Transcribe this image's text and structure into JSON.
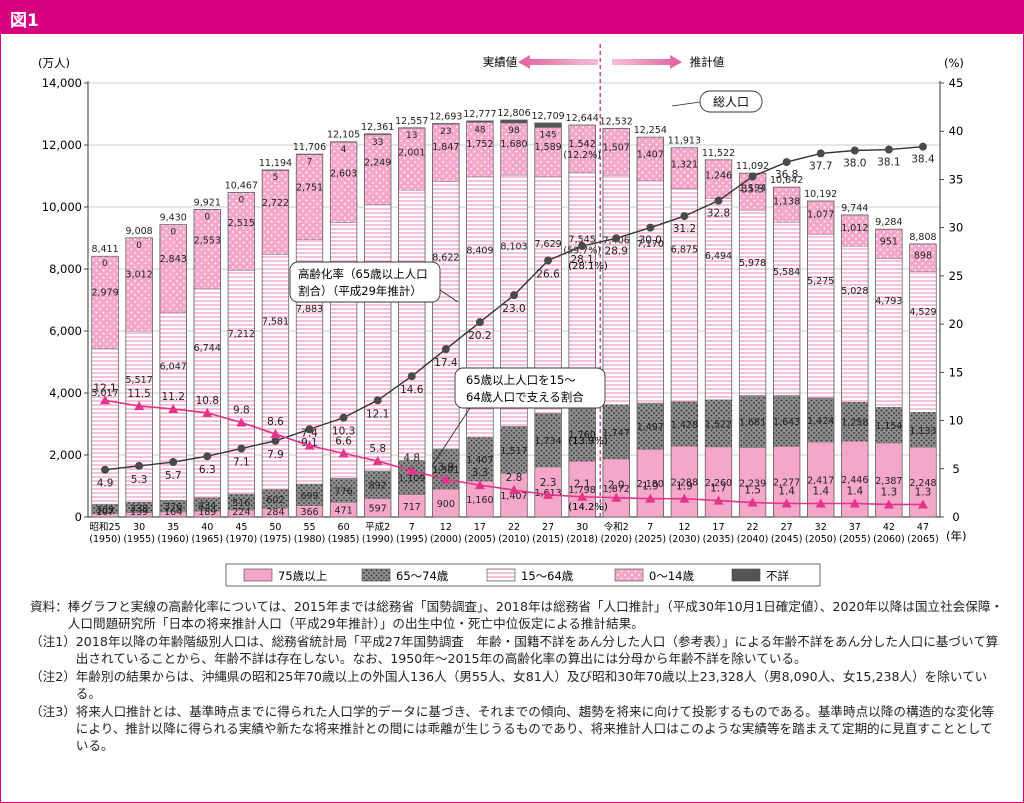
{
  "figure_label": "図1",
  "chart_data": {
    "type": "bar",
    "subtype": "stacked-bar-with-lines",
    "left_axis_unit": "(万人)",
    "right_axis_unit": "(%)",
    "x_axis_unit": "(年)",
    "y_left_ticks": [
      "0",
      "2,000",
      "4,000",
      "6,000",
      "8,000",
      "10,000",
      "12,000",
      "14,000"
    ],
    "y_left_lim": [
      0,
      14000
    ],
    "y_right_ticks": [
      "0",
      "5",
      "10",
      "15",
      "20",
      "25",
      "30",
      "35",
      "40",
      "45"
    ],
    "y_right_lim": [
      0,
      45
    ],
    "categories": [
      {
        "era": "昭和25",
        "year": "(1950)"
      },
      {
        "era": "30",
        "year": "(1955)"
      },
      {
        "era": "35",
        "year": "(1960)"
      },
      {
        "era": "40",
        "year": "(1965)"
      },
      {
        "era": "45",
        "year": "(1970)"
      },
      {
        "era": "50",
        "year": "(1975)"
      },
      {
        "era": "55",
        "year": "(1980)"
      },
      {
        "era": "60",
        "year": "(1985)"
      },
      {
        "era": "平成2",
        "year": "(1990)"
      },
      {
        "era": "7",
        "year": "(1995)"
      },
      {
        "era": "12",
        "year": "(2000)"
      },
      {
        "era": "17",
        "year": "(2005)"
      },
      {
        "era": "22",
        "year": "(2010)"
      },
      {
        "era": "27",
        "year": "(2015)"
      },
      {
        "era": "30",
        "year": "(2018)"
      },
      {
        "era": "令和2",
        "year": "(2020)"
      },
      {
        "era": "7",
        "year": "(2025)"
      },
      {
        "era": "12",
        "year": "(2030)"
      },
      {
        "era": "17",
        "year": "(2035)"
      },
      {
        "era": "22",
        "year": "(2040)"
      },
      {
        "era": "27",
        "year": "(2045)"
      },
      {
        "era": "32",
        "year": "(2050)"
      },
      {
        "era": "37",
        "year": "(2055)"
      },
      {
        "era": "42",
        "year": "(2060)"
      },
      {
        "era": "47",
        "year": "(2065)"
      }
    ],
    "series": [
      {
        "name": "75歳以上",
        "key": "s75",
        "color": "#f4a7c9",
        "pattern": "solid",
        "values": [
          107,
          139,
          164,
          189,
          224,
          284,
          366,
          471,
          597,
          717,
          900,
          1160,
          1407,
          1613,
          1798,
          1872,
          2180,
          2288,
          2260,
          2239,
          2277,
          2417,
          2446,
          2387,
          2248
        ],
        "labels": [
          "107",
          "139",
          "164",
          "189",
          "224",
          "284",
          "366",
          "471",
          "597",
          "717",
          "900",
          "1,160",
          "1,407",
          "1,613",
          "1,798",
          "1,872",
          "2,180",
          "2,288",
          "2,260",
          "2,239",
          "2,277",
          "2,417",
          "2,446",
          "2,387",
          "2,248"
        ]
      },
      {
        "name": "65～74歳",
        "key": "s6574",
        "color": "#8c8c8c",
        "pattern": "dots",
        "values": [
          309,
          338,
          376,
          434,
          516,
          602,
          699,
          776,
          892,
          1109,
          1301,
          1407,
          1517,
          1734,
          1760,
          1747,
          1497,
          1428,
          1522,
          1681,
          1643,
          1424,
          1258,
          1154,
          1133
        ],
        "labels": [
          "309",
          "338",
          "376",
          "434",
          "516",
          "602",
          "699",
          "776",
          "892",
          "1,109",
          "1,301",
          "1,407",
          "1,517",
          "1,734",
          "1,760",
          "1,747",
          "1,497",
          "1,428",
          "1,522",
          "1,681",
          "1,643",
          "1,424",
          "1,258",
          "1,154",
          "1,133"
        ]
      },
      {
        "name": "15～64歳",
        "key": "s1564",
        "color": "#ffffff",
        "pattern": "stripes",
        "values": [
          5017,
          5517,
          6047,
          6744,
          7212,
          7581,
          7883,
          8251,
          8590,
          8716,
          8622,
          8409,
          8103,
          7629,
          7545,
          7406,
          7170,
          6875,
          6494,
          5978,
          5584,
          5275,
          5028,
          4793,
          4529
        ],
        "labels": [
          "5,017",
          "5,517",
          "6,047",
          "6,744",
          "7,212",
          "7,581",
          "7,883",
          "8,251",
          "8,590",
          "8,716",
          "8,622",
          "8,409",
          "8,103",
          "7,629",
          "7,545\n(59.7%)",
          "7,406",
          "7,170",
          "6,875",
          "6,494",
          "5,978",
          "5,584",
          "5,275",
          "5,028",
          "4,793",
          "4,529"
        ]
      },
      {
        "name": "0～14歳",
        "key": "s014",
        "color": "#f4a7c9",
        "pattern": "pinkdots",
        "values": [
          2979,
          3012,
          2843,
          2553,
          2515,
          2722,
          2751,
          2603,
          2249,
          2001,
          1847,
          1752,
          1680,
          1589,
          1542,
          1507,
          1407,
          1321,
          1246,
          1194,
          1138,
          1077,
          1012,
          951,
          898
        ],
        "labels": [
          "2,979",
          "3,012",
          "2,843",
          "2,553",
          "2,515",
          "2,722",
          "2,751",
          "2,603",
          "2,249",
          "2,001",
          "1,847",
          "1,752",
          "1,680",
          "1,589",
          "1,542\n(12.2%)",
          "1,507",
          "1,407",
          "1,321",
          "1,246",
          "1,194",
          "1,138",
          "1,077",
          "1,012",
          "951",
          "898"
        ]
      },
      {
        "name": "不詳",
        "key": "sunk",
        "color": "#555555",
        "pattern": "solid",
        "values": [
          0,
          0,
          0,
          0,
          0,
          5,
          7,
          4,
          33,
          13,
          23,
          48,
          98,
          145,
          0,
          0,
          0,
          0,
          0,
          0,
          0,
          0,
          0,
          0,
          0
        ],
        "labels": [
          "0",
          "0",
          "0",
          "0",
          "0",
          "5",
          "7",
          "4",
          "33",
          "13",
          "23",
          "48",
          "98",
          "145",
          "",
          "",
          "",
          "",
          "",
          "",
          "",
          "",
          "",
          "",
          ""
        ]
      }
    ],
    "totals": [
      "8,411",
      "9,008",
      "9,430",
      "9,921",
      "10,467",
      "11,194",
      "11,706",
      "12,105",
      "12,361",
      "12,557",
      "12,693",
      "12,777",
      "12,806",
      "12,709",
      "12,644",
      "12,532",
      "12,254",
      "11,913",
      "11,522",
      "11,092",
      "10,642",
      "10,192",
      "9,744",
      "9,284",
      "8,808"
    ],
    "aging_rate": {
      "name": "高齢化率（65歳以上人口割合）（平成29年推計）",
      "values": [
        4.9,
        5.3,
        5.7,
        6.3,
        7.1,
        7.9,
        9.1,
        10.3,
        12.1,
        14.6,
        17.4,
        20.2,
        23.0,
        26.6,
        28.1,
        28.9,
        30.0,
        31.2,
        32.8,
        35.3,
        36.8,
        37.7,
        38.0,
        38.1,
        38.4
      ],
      "labels": [
        "4.9",
        "5.3",
        "5.7",
        "6.3",
        "7.1",
        "7.9",
        "9.1",
        "10.3",
        "12.1",
        "14.6",
        "17.4",
        "20.2",
        "23.0",
        "26.6",
        "28.1",
        "28.9",
        "30.0",
        "31.2",
        "32.8",
        "35.3",
        "36.8",
        "37.7",
        "38.0",
        "38.1",
        "38.4"
      ]
    },
    "support_ratio": {
      "name": "65歳以上人口を15～64歳人口で支える割合",
      "values": [
        12.1,
        11.5,
        11.2,
        10.8,
        9.8,
        8.6,
        7.4,
        6.6,
        5.8,
        4.8,
        3.9,
        3.3,
        2.8,
        2.3,
        2.1,
        2.0,
        1.9,
        1.9,
        1.7,
        1.5,
        1.4,
        1.4,
        1.4,
        1.3,
        1.3
      ],
      "labels": [
        "12.1",
        "11.5",
        "11.2",
        "10.8",
        "9.8",
        "8.6",
        "7.4",
        "6.6",
        "5.8",
        "4.8",
        "3.9",
        "3.3",
        "2.8",
        "2.3",
        "2.1",
        "2.0",
        "1.9",
        "1.9",
        "1.7",
        "1.5",
        "1.4",
        "1.4",
        "1.4",
        "1.3",
        "1.3"
      ]
    },
    "divider_after_index": 14,
    "actual_label": "実績値",
    "projection_label": "推計値",
    "callouts": {
      "total_pop": "総人口",
      "aging_rate_line1": "高齢化率（65歳以上人口",
      "aging_rate_line2": "割合）（平成29年推計）",
      "support_line1": "65歳以上人口を15～",
      "support_line2": "64歳人口で支える割合",
      "pct_2018_aged": "(28.1%)",
      "pct_2018_6574": "(13.9%)",
      "pct_2018_75": "(14.2%)"
    },
    "legend": [
      "75歳以上",
      "65～74歳",
      "15～64歳",
      "0～14歳",
      "不詳"
    ]
  },
  "notes": [
    {
      "tag": "資料：",
      "text": "棒グラフと実線の高齢化率については、2015年までは総務省「国勢調査」、2018年は総務省「人口推計」（平成30年10月1日確定値）、2020年以降は国立社会保障・人口問題研究所「日本の将来推計人口（平成29年推計）」の出生中位・死亡中位仮定による推計結果。"
    },
    {
      "tag": "（注1）",
      "text": "2018年以降の年齢階級別人口は、総務省統計局「平成27年国勢調査　年齢・国籍不詳をあん分した人口（参考表）」による年齢不詳をあん分した人口に基づいて算出されていることから、年齢不詳は存在しない。なお、1950年～2015年の高齢化率の算出には分母から年齢不詳を除いている。"
    },
    {
      "tag": "（注2）",
      "text": "年齢別の結果からは、沖縄県の昭和25年70歳以上の外国人136人（男55人、女81人）及び昭和30年70歳以上23,328人（男8,090人、女15,238人）を除いている。"
    },
    {
      "tag": "（注3）",
      "text": "将来人口推計とは、基準時点までに得られた人口学的データに基づき、それまでの傾向、趨勢を将来に向けて投影するものである。基準時点以降の構造的な変化等により、推計以降に得られる実績や新たな将来推計との間には乖離が生じうるものであり、将来推計人口はこのような実績等を踏まえて定期的に見直すこととしている。"
    }
  ]
}
